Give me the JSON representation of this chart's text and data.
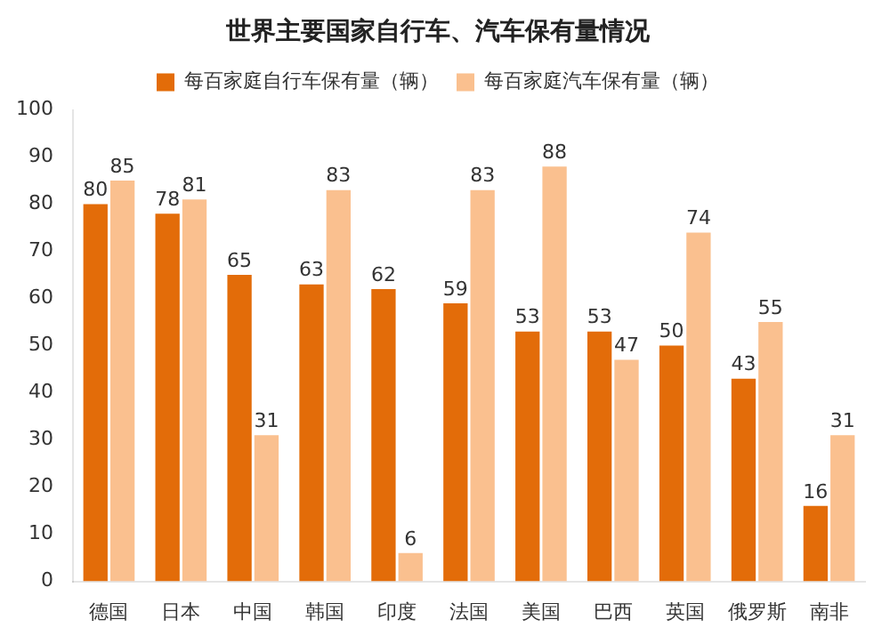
{
  "chart_data": {
    "type": "bar",
    "title": "世界主要国家自行车、汽车保有量情况",
    "categories": [
      "德国",
      "日本",
      "中国",
      "韩国",
      "印度",
      "法国",
      "美国",
      "巴西",
      "英国",
      "俄罗斯",
      "南非"
    ],
    "series": [
      {
        "name": "每百家庭自行车保有量（辆）",
        "color": "#e36c09",
        "values": [
          80,
          78,
          65,
          63,
          62,
          59,
          53,
          53,
          50,
          43,
          16
        ]
      },
      {
        "name": "每百家庭汽车保有量（辆）",
        "color": "#fac08f",
        "values": [
          85,
          81,
          31,
          83,
          6,
          83,
          88,
          47,
          74,
          55,
          31
        ]
      }
    ],
    "ylim": [
      0,
      100
    ],
    "yticks": [
      0,
      10,
      20,
      30,
      40,
      50,
      60,
      70,
      80,
      90,
      100
    ],
    "grid": false,
    "legend": "top",
    "data_labels": true
  }
}
